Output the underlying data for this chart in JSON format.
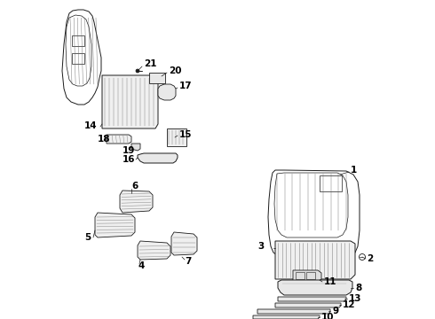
{
  "bg_color": "#ffffff",
  "line_color": "#1a1a1a",
  "label_color": "#000000",
  "fig_width": 4.9,
  "fig_height": 3.6,
  "dpi": 100,
  "font_size": 7.5,
  "lw": 0.65
}
